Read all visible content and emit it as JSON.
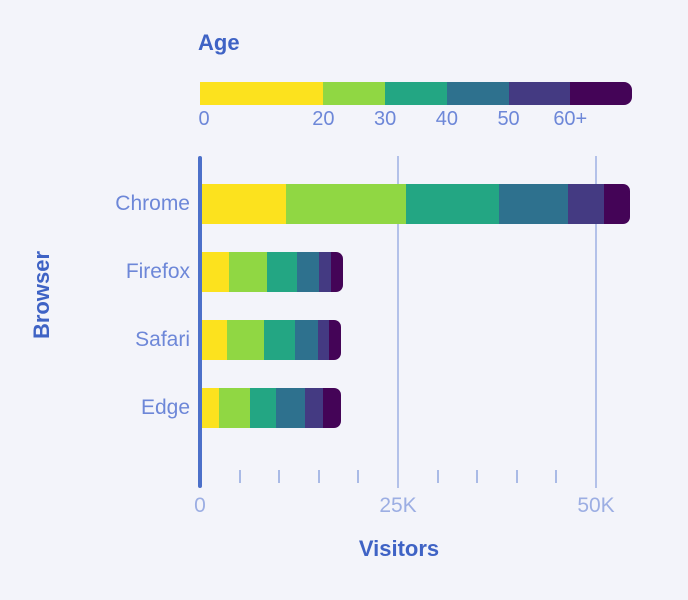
{
  "colors": {
    "background": "#F3F4FA",
    "axis_line": "#4C70C9",
    "gridline": "#B3C1E9",
    "minor_tick": "#A9BAE6",
    "title_text": "#3F63C5",
    "category_text": "#6D87D8",
    "x_axis_label_text": "#9CAEE3",
    "age_segments": [
      "#FCE21E",
      "#90D743",
      "#23A683",
      "#2E718E",
      "#443A82",
      "#440457"
    ]
  },
  "legend": {
    "title": "Age",
    "tick_labels": [
      "0",
      "20",
      "30",
      "40",
      "50",
      "60+"
    ],
    "segment_units": [
      2,
      1,
      1,
      1,
      1,
      1
    ]
  },
  "chart_data": {
    "type": "bar",
    "orientation": "horizontal",
    "stacked": true,
    "xlabel": "Visitors",
    "ylabel": "Browser",
    "categories": [
      "Chrome",
      "Firefox",
      "Safari",
      "Edge"
    ],
    "age_groups": [
      "0-20",
      "20-30",
      "30-40",
      "40-50",
      "50-60",
      "60+"
    ],
    "series": [
      {
        "name": "0-20",
        "values": [
          10600,
          3400,
          3200,
          2200
        ]
      },
      {
        "name": "20-30",
        "values": [
          15100,
          4800,
          4600,
          3800
        ]
      },
      {
        "name": "30-40",
        "values": [
          11800,
          3800,
          3900,
          3400
        ]
      },
      {
        "name": "40-50",
        "values": [
          8700,
          2800,
          2900,
          3600
        ]
      },
      {
        "name": "50-60",
        "values": [
          4600,
          1500,
          1500,
          2300
        ]
      },
      {
        "name": "60+",
        "values": [
          3300,
          1500,
          1500,
          2300
        ]
      }
    ],
    "totals": {
      "Chrome": 54100,
      "Firefox": 17800,
      "Safari": 17600,
      "Edge": 17600
    },
    "xlim": [
      0,
      50000
    ],
    "x_ticks": [
      {
        "value": 0,
        "label": "0"
      },
      {
        "value": 25000,
        "label": "25K"
      },
      {
        "value": 50000,
        "label": "50K"
      }
    ],
    "x_minor_step": 5000,
    "grid": true,
    "legend_position": "top"
  }
}
